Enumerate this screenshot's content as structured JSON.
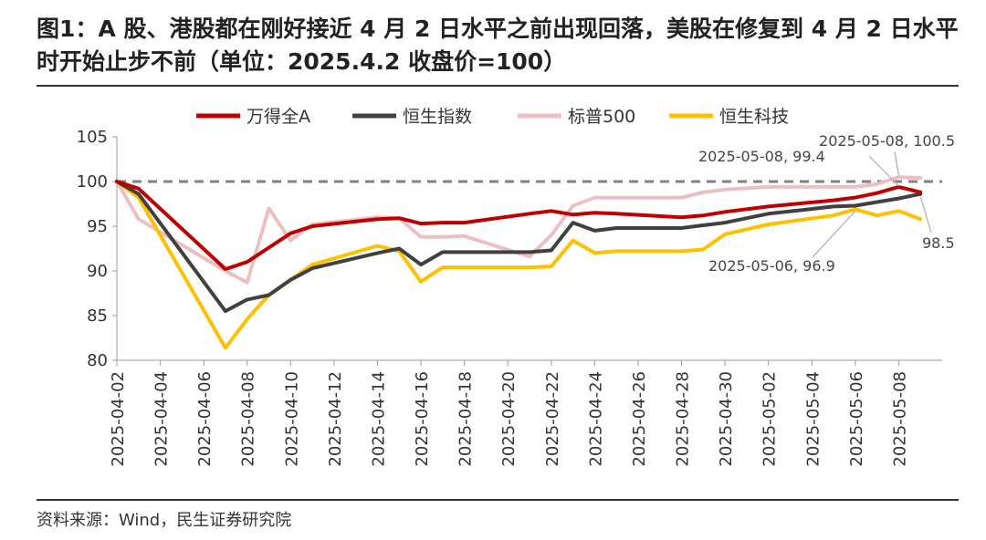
{
  "title": "图1：A 股、港股都在刚好接近 4 月 2 日水平之前出现回落，美股在修复到 4 月 2 日水平时开始止步不前（单位：2025.4.2 收盘价=100）",
  "source": "资料来源：Wind，民生证券研究院",
  "chart_data": {
    "type": "line",
    "ylim": [
      80,
      105
    ],
    "yticks": [
      "80",
      "85",
      "90",
      "95",
      "100",
      "105"
    ],
    "reference_line": 100,
    "x": [
      "2025-04-02",
      "2025-04-03",
      "2025-04-07",
      "2025-04-08",
      "2025-04-09",
      "2025-04-10",
      "2025-04-11",
      "2025-04-14",
      "2025-04-15",
      "2025-04-16",
      "2025-04-17",
      "2025-04-18",
      "2025-04-21",
      "2025-04-22",
      "2025-04-23",
      "2025-04-24",
      "2025-04-25",
      "2025-04-28",
      "2025-04-29",
      "2025-04-30",
      "2025-05-02",
      "2025-05-05",
      "2025-05-06",
      "2025-05-07",
      "2025-05-08",
      "2025-05-09"
    ],
    "xticks": [
      "2025-04-02",
      "2025-04-04",
      "2025-04-06",
      "2025-04-08",
      "2025-04-10",
      "2025-04-12",
      "2025-04-14",
      "2025-04-16",
      "2025-04-18",
      "2025-04-20",
      "2025-04-22",
      "2025-04-24",
      "2025-04-26",
      "2025-04-28",
      "2025-04-30",
      "2025-05-02",
      "2025-05-04",
      "2025-05-06",
      "2025-05-08"
    ],
    "series": [
      {
        "name": "万得全A",
        "color": "#C00000",
        "values": [
          100,
          99.2,
          90.2,
          91,
          92.6,
          94.2,
          95,
          95.8,
          95.9,
          95.3,
          95.4,
          95.4,
          96.4,
          96.7,
          96.3,
          96.5,
          96.4,
          96,
          96.2,
          96.6,
          97.2,
          97.9,
          98.2,
          98.7,
          99.4,
          98.8
        ]
      },
      {
        "name": "恒生指数",
        "color": "#404040",
        "values": [
          100,
          98.6,
          85.5,
          86.8,
          87.3,
          89.0,
          90.3,
          92,
          92.5,
          90.7,
          92.1,
          92.1,
          92.1,
          92.3,
          95.4,
          94.5,
          94.8,
          94.8,
          95.1,
          95.4,
          96.4,
          97.2,
          97.3,
          97.7,
          98.1,
          98.6
        ]
      },
      {
        "name": "标普500",
        "color": "#EBC0C4",
        "values": [
          100,
          95.8,
          90,
          88.7,
          97,
          93.4,
          95.2,
          96,
          95.9,
          93.8,
          93.8,
          93.9,
          91.6,
          94,
          97.3,
          98.2,
          98.2,
          98.2,
          98.8,
          99.1,
          99.4,
          99.4,
          99.4,
          99.7,
          100.5,
          100.4
        ]
      },
      {
        "name": "恒生科技",
        "color": "#FFC000",
        "values": [
          100,
          98.2,
          81.4,
          84.6,
          87.3,
          89.0,
          90.7,
          92.8,
          92.2,
          88.8,
          90.4,
          90.4,
          90.4,
          90.5,
          93.4,
          92.0,
          92.2,
          92.2,
          92.4,
          94.1,
          95.2,
          96.2,
          96.9,
          96.2,
          96.7,
          95.8
        ]
      }
    ],
    "annotations": [
      {
        "text": "2025-05-08, 100.5"
      },
      {
        "text": "2025-05-08, 99.4"
      },
      {
        "text": "98.5"
      },
      {
        "text": "2025-05-06, 96.9"
      }
    ]
  }
}
